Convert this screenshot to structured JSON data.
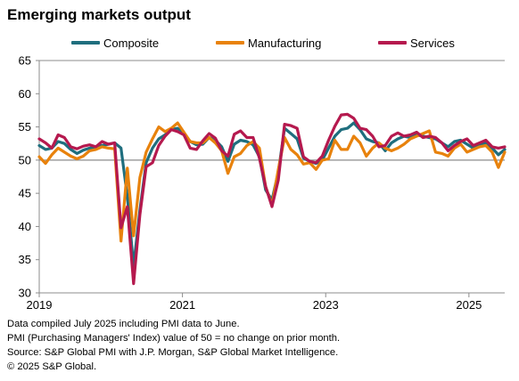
{
  "title": "Emerging markets output",
  "footnotes": [
    "Data compiled July 2025 including PMI data to June.",
    "PMI (Purchasing Managers' Index) value of 50 = no change on prior month.",
    "Source: S&P Global PMI with J.P. Morgan, S&P Global Market Intelligence.",
    "© 2025 S&P Global."
  ],
  "chart_data": {
    "type": "line",
    "title": "Emerging markets output",
    "xlabel": "",
    "ylabel": "",
    "xlim": [
      2019.0,
      2025.5
    ],
    "ylim": [
      30,
      65
    ],
    "yticks": [
      30,
      35,
      40,
      45,
      50,
      55,
      60,
      65
    ],
    "xtick_labels": [
      "2019",
      "2021",
      "2023",
      "2025"
    ],
    "xtick_values": [
      2019,
      2021,
      2023,
      2025
    ],
    "reference_line": 50,
    "grid": false,
    "legend_position": "top",
    "series": [
      {
        "name": "Composite",
        "color": "#1f6e7e",
        "values": [
          52.2,
          51.6,
          51.8,
          52.8,
          52.5,
          51.6,
          51.0,
          51.5,
          51.8,
          52.0,
          52.2,
          52.4,
          52.6,
          51.8,
          44.5,
          34.0,
          42.5,
          49.6,
          51.8,
          53.2,
          53.8,
          54.6,
          54.8,
          54.0,
          52.8,
          52.3,
          52.4,
          53.4,
          53.0,
          52.0,
          49.8,
          52.4,
          53.0,
          52.8,
          52.3,
          50.5,
          45.5,
          44.0,
          48.2,
          54.8,
          54.0,
          53.2,
          50.3,
          49.8,
          49.5,
          50.0,
          51.8,
          53.6,
          54.6,
          54.8,
          55.6,
          54.6,
          53.2,
          52.8,
          52.6,
          51.4,
          52.6,
          53.2,
          53.6,
          53.4,
          53.8,
          53.6,
          53.4,
          53.2,
          52.6,
          52.0,
          52.8,
          53.0,
          52.4,
          51.8,
          52.4,
          52.6,
          51.8,
          50.8,
          51.6
        ]
      },
      {
        "name": "Manufacturing",
        "color": "#e8820c",
        "values": [
          50.5,
          49.5,
          50.8,
          51.8,
          51.2,
          50.6,
          50.2,
          50.6,
          51.4,
          51.6,
          52.0,
          51.8,
          51.7,
          37.8,
          48.8,
          38.6,
          47.4,
          51.2,
          53.2,
          55.0,
          54.3,
          54.8,
          55.6,
          54.2,
          52.8,
          52.6,
          52.6,
          53.4,
          52.6,
          51.4,
          48.0,
          50.5,
          51.0,
          52.2,
          52.8,
          51.8,
          46.0,
          43.2,
          48.6,
          53.4,
          51.6,
          50.8,
          49.4,
          49.6,
          48.6,
          50.0,
          50.2,
          53.0,
          51.6,
          51.6,
          53.6,
          52.6,
          50.6,
          51.8,
          52.6,
          51.8,
          51.4,
          51.8,
          52.4,
          53.2,
          53.6,
          54.0,
          54.4,
          51.2,
          51.0,
          50.6,
          51.8,
          52.4,
          51.2,
          51.6,
          52.0,
          52.2,
          51.2,
          48.9,
          51.2
        ]
      },
      {
        "name": "Services",
        "color": "#b5194e",
        "values": [
          53.2,
          52.6,
          51.8,
          53.8,
          53.4,
          52.0,
          51.7,
          52.1,
          52.3,
          52.0,
          52.8,
          52.4,
          52.6,
          39.8,
          43.0,
          31.4,
          41.8,
          49.0,
          49.6,
          52.2,
          53.6,
          54.6,
          54.3,
          53.8,
          51.8,
          51.6,
          52.9,
          54.0,
          53.3,
          51.4,
          50.6,
          53.9,
          54.4,
          53.4,
          53.4,
          50.3,
          46.0,
          43.0,
          47.0,
          55.4,
          55.2,
          54.8,
          50.5,
          49.8,
          49.6,
          50.6,
          53.0,
          55.1,
          56.8,
          56.9,
          56.3,
          54.8,
          54.6,
          53.6,
          52.0,
          52.2,
          53.6,
          54.1,
          53.6,
          53.8,
          54.2,
          53.4,
          53.6,
          53.4,
          52.6,
          51.4,
          52.2,
          52.8,
          53.2,
          52.2,
          52.6,
          53.0,
          52.0,
          51.8,
          52.0
        ]
      }
    ]
  }
}
